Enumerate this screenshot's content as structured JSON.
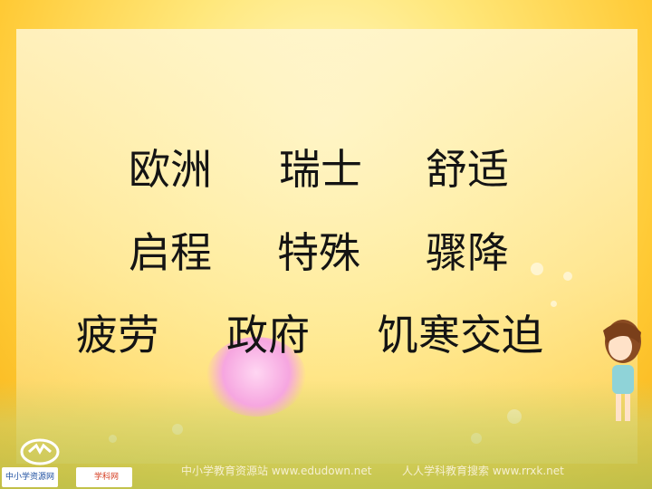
{
  "rows": [
    [
      "欧洲",
      "瑞士",
      "舒适"
    ],
    [
      "启程",
      "特殊",
      "骤降"
    ],
    [
      "疲劳",
      "政府",
      "饥寒交迫"
    ]
  ],
  "footer": {
    "left_text": "中小学教育资源站 www.edudown.net",
    "right_text": "人人学科教育搜索 www.rrxk.net",
    "logo1_label": "中小学资源网",
    "logo2_label": "学科网"
  },
  "colors": {
    "background": "#ffc933",
    "text": "#141414"
  }
}
